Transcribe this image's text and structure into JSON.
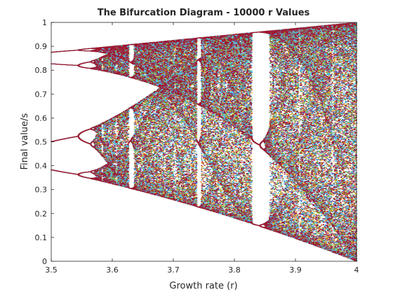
{
  "chart_data": {
    "type": "scatter",
    "title": "The Bifurcation Diagram - 10000 r Values",
    "xlabel": "Growth rate (r)",
    "ylabel": "Final value/s",
    "xlim": [
      3.5,
      4
    ],
    "ylim": [
      0,
      1
    ],
    "xticks": [
      "3.5",
      "3.6",
      "3.7",
      "3.8",
      "3.9",
      "4"
    ],
    "yticks": [
      "0",
      "0.1",
      "0.2",
      "0.3",
      "0.4",
      "0.5",
      "0.6",
      "0.7",
      "0.8",
      "0.9",
      "1"
    ],
    "grid": false,
    "legend": "none",
    "map": "logistic",
    "r_values": 10000,
    "series_colors": [
      "#0072BD",
      "#D95319",
      "#EDB120",
      "#7E2F8E",
      "#77AC30",
      "#4DBEEE",
      "#A2142F"
    ]
  }
}
